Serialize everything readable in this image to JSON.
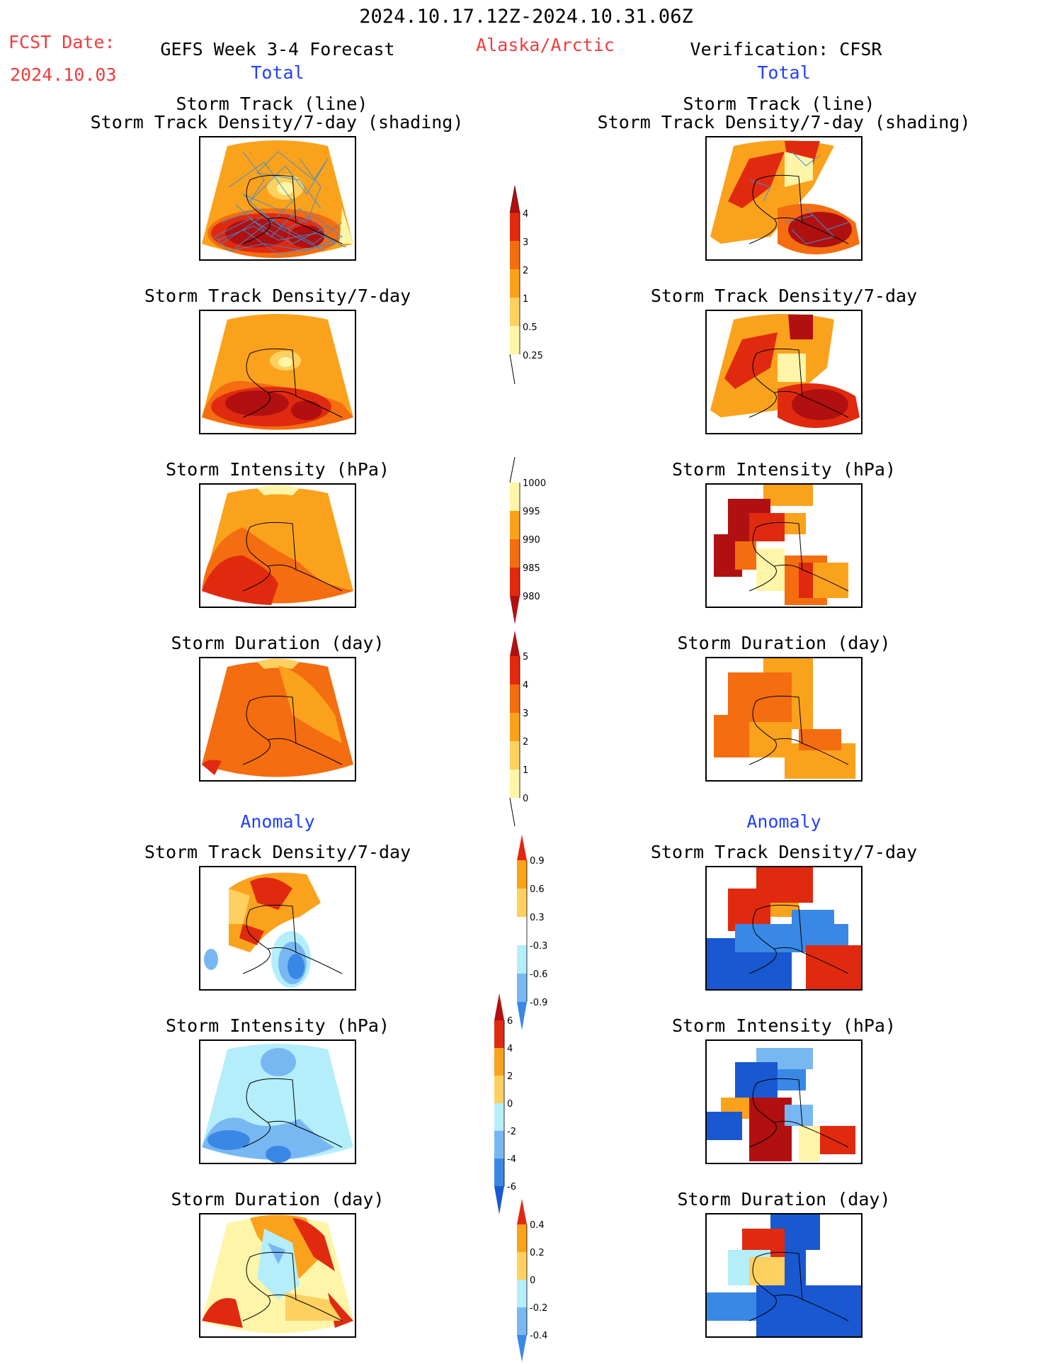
{
  "header": {
    "date_range": "2024.10.17.12Z-2024.10.31.06Z",
    "fcst_label": "FCST Date:",
    "fcst_date": "2024.10.03",
    "left_title": "GEFS Week 3-4 Forecast",
    "region": "Alaska/Arctic",
    "right_title": "Verification: CFSR",
    "left_sub": "Total",
    "right_sub": "Total",
    "anomaly_left": "Anomaly",
    "anomaly_right": "Anomaly"
  },
  "panels": {
    "track_line": "Storm Track (line)",
    "track_shading": "Storm Track Density/7-day (shading)",
    "density": "Storm Track Density/7-day",
    "intensity": "Storm Intensity (hPa)",
    "duration": "Storm Duration (day)"
  },
  "colors": {
    "pale": "#fff5a8",
    "lightorange": "#fdd060",
    "orange": "#fba21c",
    "darkorange": "#f46d10",
    "red": "#e02a10",
    "darkred": "#b01010",
    "lightblue": "#b4eefa",
    "midblue": "#78b8f2",
    "blue": "#3a88e6",
    "darkblue": "#1958d0",
    "track": "#3a8fd8"
  },
  "chart_data": [
    {
      "type": "heatmap",
      "name": "Density total colorbar",
      "levels": [
        "0.25",
        "0.5",
        "1",
        "2",
        "3",
        "4"
      ]
    },
    {
      "type": "heatmap",
      "name": "Intensity total colorbar",
      "levels": [
        "1000",
        "995",
        "990",
        "985",
        "980"
      ]
    },
    {
      "type": "heatmap",
      "name": "Duration total colorbar",
      "levels": [
        "5",
        "4",
        "3",
        "2",
        "1",
        "0"
      ]
    },
    {
      "type": "heatmap",
      "name": "Density anomaly colorbar",
      "levels": [
        "0.9",
        "0.6",
        "0.3",
        "-0.3",
        "-0.6",
        "-0.9"
      ]
    },
    {
      "type": "heatmap",
      "name": "Intensity anomaly colorbar",
      "levels": [
        "6",
        "4",
        "2",
        "0",
        "-2",
        "-4",
        "-6"
      ]
    },
    {
      "type": "heatmap",
      "name": "Duration anomaly colorbar",
      "levels": [
        "0.4",
        "0.2",
        "0",
        "-0.2",
        "-0.4"
      ]
    }
  ]
}
